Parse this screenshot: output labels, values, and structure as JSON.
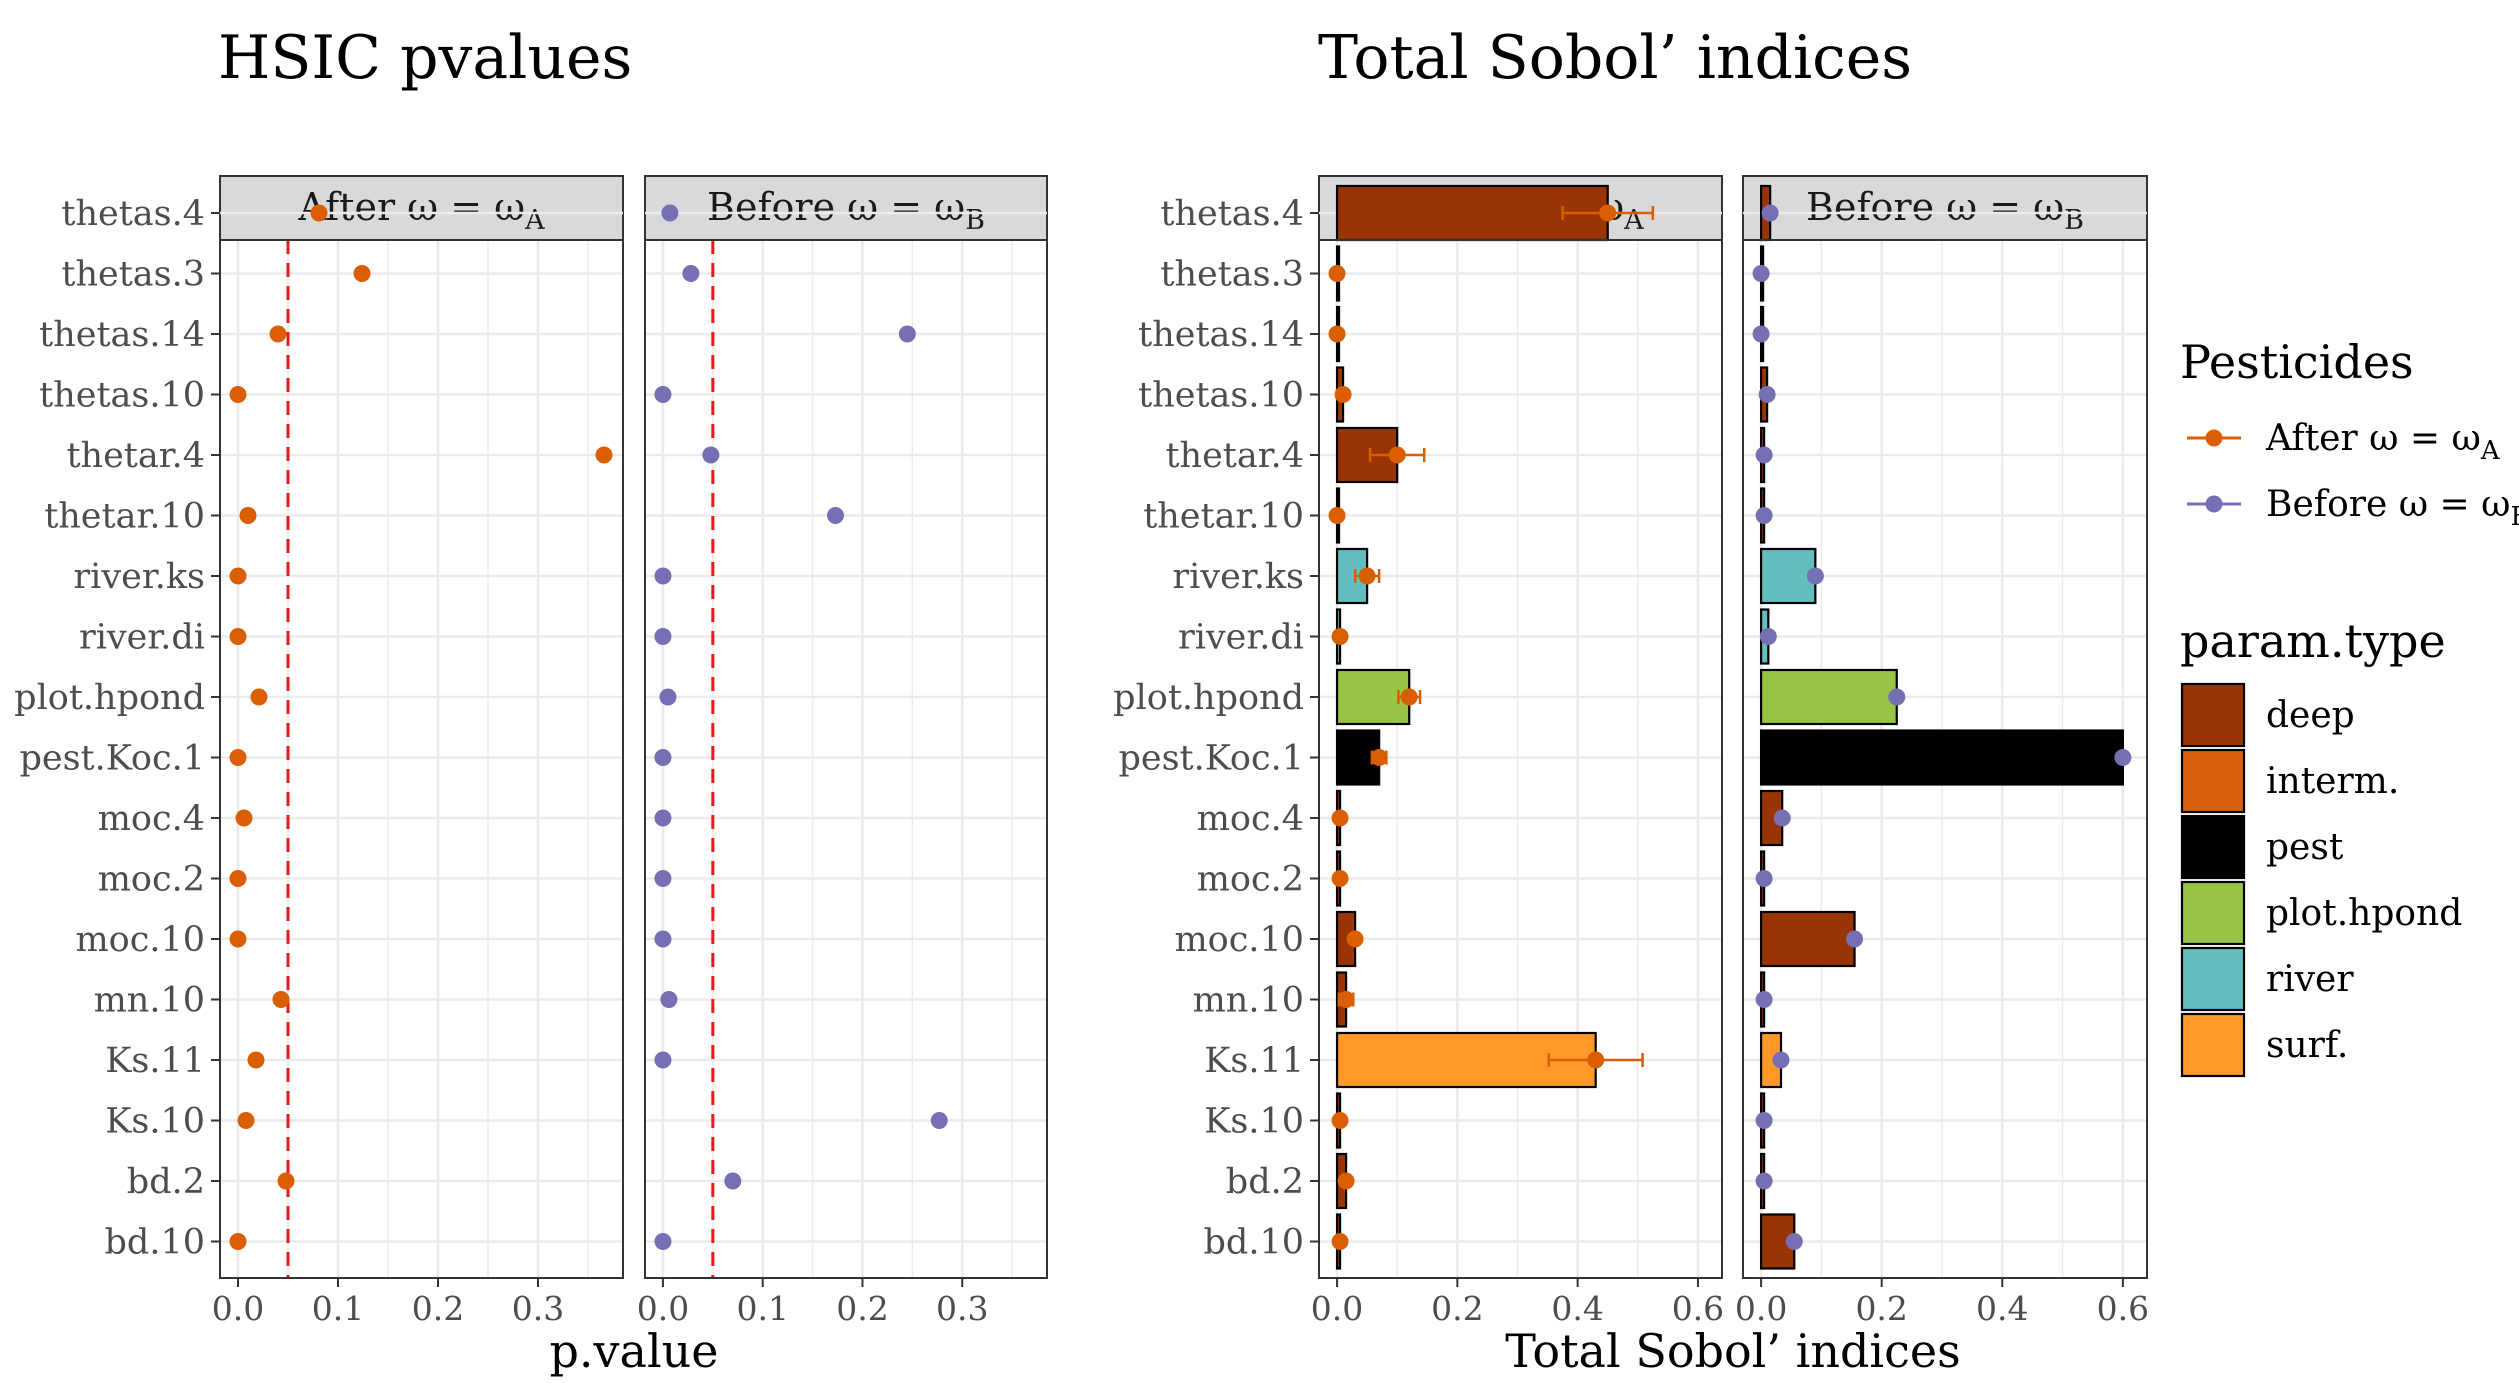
{
  "chart_data": [
    {
      "type": "scatter",
      "title": "HSIC pvalues",
      "xlabel": "p.value",
      "xlim": [
        -0.018,
        0.385
      ],
      "xticks": [
        "0.0",
        "0.1",
        "0.2",
        "0.3"
      ],
      "threshold": 0.05,
      "panels": [
        {
          "label": "After ω = ω_A",
          "label_prefix": "After ω = ω",
          "label_sub": "A",
          "series": "After ω = ωA",
          "values": [
            0.081,
            0.124,
            0.04,
            0.0,
            0.366,
            0.01,
            0.0,
            0.0,
            0.021,
            0.0,
            0.006,
            0.0,
            0.0,
            0.043,
            0.018,
            0.008,
            0.048,
            0.0
          ]
        },
        {
          "label": "Before ω = ω_B",
          "label_prefix": "Before ω = ω",
          "label_sub": "B",
          "series": "Before ω = ωB",
          "values": [
            0.007,
            0.028,
            0.245,
            0.0,
            0.048,
            0.173,
            0.0,
            0.0,
            0.005,
            0.0,
            0.0,
            0.0,
            0.0,
            0.006,
            0.0,
            0.277,
            0.07,
            0.0
          ]
        }
      ]
    },
    {
      "type": "bar",
      "title": "Total Sobol’ indices",
      "xlabel": "Total Sobol’ indices",
      "xlim": [
        -0.03,
        0.64
      ],
      "xticks": [
        "0.0",
        "0.2",
        "0.4",
        "0.6"
      ],
      "panels": [
        {
          "label": "After ω = ω_A",
          "label_prefix": "After ω = ω",
          "label_sub": "A",
          "series": "After ω = ωA",
          "values": [
            0.45,
            0.0,
            0.0,
            0.01,
            0.1,
            0.0,
            0.05,
            0.005,
            0.12,
            0.07,
            0.005,
            0.005,
            0.03,
            0.015,
            0.43,
            0.005,
            0.015,
            0.005
          ],
          "errors": [
            0.075,
            0.0,
            0.0,
            0.004,
            0.045,
            0.0,
            0.02,
            0.0,
            0.018,
            0.012,
            0.0,
            0.0,
            0.004,
            0.012,
            0.078,
            0.0,
            0.004,
            0.0
          ]
        },
        {
          "label": "Before ω = ω_B",
          "label_prefix": "Before ω = ω",
          "label_sub": "B",
          "series": "Before ω = ωB",
          "values": [
            0.015,
            0.0,
            0.0,
            0.01,
            0.005,
            0.005,
            0.09,
            0.012,
            0.225,
            0.6,
            0.035,
            0.005,
            0.155,
            0.005,
            0.033,
            0.005,
            0.005,
            0.055
          ],
          "errors": [
            0.0,
            0.0,
            0.0,
            0.0,
            0.0,
            0.0,
            0.0,
            0.0,
            0.0,
            0.005,
            0.0,
            0.0,
            0.0,
            0.0,
            0.0,
            0.0,
            0.0,
            0.0
          ]
        }
      ]
    }
  ],
  "parameters": [
    "thetas.4",
    "thetas.3",
    "thetas.14",
    "thetas.10",
    "thetar.4",
    "thetar.10",
    "river.ks",
    "river.di",
    "plot.hpond",
    "pest.Koc.1",
    "moc.4",
    "moc.2",
    "moc.10",
    "mn.10",
    "Ks.11",
    "Ks.10",
    "bd.2",
    "bd.10"
  ],
  "param_types": [
    "deep",
    "deep",
    "deep",
    "deep",
    "deep",
    "deep",
    "river",
    "river",
    "plot.hpond",
    "pest",
    "deep",
    "deep",
    "deep",
    "deep",
    "surf.",
    "deep",
    "deep",
    "deep"
  ],
  "legend": {
    "pesticides": {
      "title": "Pesticides",
      "items": [
        {
          "prefix": "After ω = ω",
          "sub": "A",
          "color": "#d95f02"
        },
        {
          "prefix": "Before ω = ω",
          "sub": "B",
          "color": "#7570b3"
        }
      ]
    },
    "param_type": {
      "title": "param.type",
      "items": [
        {
          "label": "deep",
          "color": "#993404"
        },
        {
          "label": "interm.",
          "color": "#d95f0e"
        },
        {
          "label": "pest",
          "color": "#000000"
        },
        {
          "label": "plot.hpond",
          "color": "#9ac446"
        },
        {
          "label": "river",
          "color": "#63bfbd"
        },
        {
          "label": "surf.",
          "color": "#fe9929"
        }
      ]
    }
  },
  "colors": {
    "after": "#d95f02",
    "before": "#7570b3",
    "threshold_line": "#e41a1c",
    "strip_fill": "#d9d9d9",
    "grid": "#ebebeb"
  }
}
